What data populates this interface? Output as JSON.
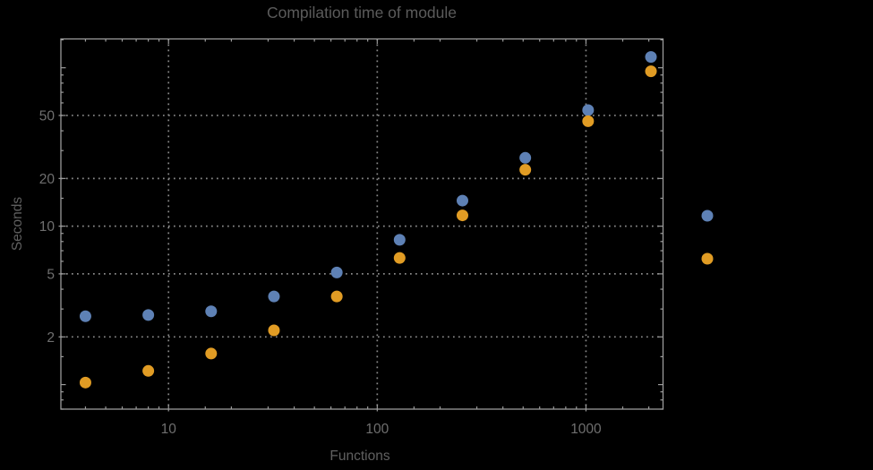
{
  "title": "Compilation time of module",
  "xlabel": "Functions",
  "ylabel": "Seconds",
  "colors": {
    "background": "#000000",
    "frame": "#9b9b9b",
    "grid": "#8a8a8a",
    "tick_label": "#6f6f6f",
    "title": "#5b5b5b",
    "axis_label": "#606060",
    "series1": "#5e81b5",
    "series2": "#e19c24"
  },
  "chart_data": {
    "type": "scatter",
    "title": "Compilation time of module",
    "xlabel": "Functions",
    "ylabel": "Seconds",
    "xscale": "log",
    "yscale": "log",
    "xlim": [
      3.05,
      2340
    ],
    "ylim": [
      0.7,
      152
    ],
    "x_ticks": [
      10,
      100,
      1000
    ],
    "y_ticks": [
      2,
      5,
      10,
      20,
      50
    ],
    "grid": "dotted",
    "x": [
      4,
      8,
      16,
      32,
      64,
      128,
      256,
      512,
      1024,
      2048
    ],
    "series": [
      {
        "name": "series-1-blue",
        "color": "#5e81b5",
        "values": [
          2.7,
          2.75,
          2.9,
          3.6,
          5.1,
          8.2,
          14.5,
          27,
          54,
          117
        ]
      },
      {
        "name": "series-2-orange",
        "color": "#e19c24",
        "values": [
          1.03,
          1.22,
          1.57,
          2.2,
          3.6,
          6.3,
          11.7,
          22.7,
          46,
          95
        ]
      }
    ],
    "legend": {
      "position": "outside-right",
      "entries": [
        {
          "color": "#5e81b5",
          "label": ""
        },
        {
          "color": "#e19c24",
          "label": ""
        }
      ]
    }
  }
}
